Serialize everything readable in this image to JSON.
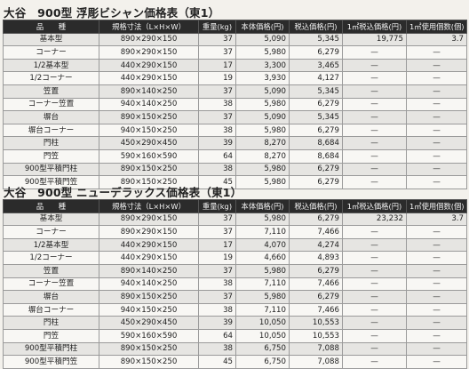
{
  "tables": [
    {
      "title": "大谷　900型 浮彫ビシャン価格表（東1）",
      "headers": [
        "品　　種",
        "規格寸法（L×H×W）",
        "重量(kg)",
        "本体価格(円)",
        "税込価格(円)",
        "1㎡税込価格(円)",
        "1㎡使用個数(個)"
      ],
      "rows": [
        [
          "基本型",
          "890×290×150",
          "37",
          "5,090",
          "5,345",
          "19,775",
          "3.7"
        ],
        [
          "コーナー",
          "890×290×150",
          "37",
          "5,980",
          "6,279",
          "—",
          "—"
        ],
        [
          "1/2基本型",
          "440×290×150",
          "17",
          "3,300",
          "3,465",
          "—",
          "—"
        ],
        [
          "1/2コーナー",
          "440×290×150",
          "19",
          "3,930",
          "4,127",
          "—",
          "—"
        ],
        [
          "笠置",
          "890×140×250",
          "37",
          "5,090",
          "5,345",
          "—",
          "—"
        ],
        [
          "コーナー笠置",
          "940×140×250",
          "38",
          "5,980",
          "6,279",
          "—",
          "—"
        ],
        [
          "塀台",
          "890×150×250",
          "37",
          "5,090",
          "5,345",
          "—",
          "—"
        ],
        [
          "塀台コーナー",
          "940×150×250",
          "38",
          "5,980",
          "6,279",
          "—",
          "—"
        ],
        [
          "門柱",
          "450×290×450",
          "39",
          "8,270",
          "8,684",
          "—",
          "—"
        ],
        [
          "門笠",
          "590×160×590",
          "64",
          "8,270",
          "8,684",
          "—",
          "—"
        ],
        [
          "900型平積門柱",
          "890×150×250",
          "38",
          "5,980",
          "6,279",
          "—",
          "—"
        ],
        [
          "900型平積門笠",
          "890×150×250",
          "45",
          "5,980",
          "6,279",
          "—",
          "—"
        ]
      ]
    },
    {
      "title": "大谷　900型 ニューデラックス価格表（東1）",
      "headers": [
        "品　　種",
        "規格寸法（L×H×W）",
        "重量(kg)",
        "本体価格(円)",
        "税込価格(円)",
        "1㎡税込価格(円)",
        "1㎡使用個数(個)"
      ],
      "rows": [
        [
          "基本型",
          "890×290×150",
          "37",
          "5,980",
          "6,279",
          "23,232",
          "3.7"
        ],
        [
          "コーナー",
          "890×290×150",
          "37",
          "7,110",
          "7,466",
          "—",
          "—"
        ],
        [
          "1/2基本型",
          "440×290×150",
          "17",
          "4,070",
          "4,274",
          "—",
          "—"
        ],
        [
          "1/2コーナー",
          "440×290×150",
          "19",
          "4,660",
          "4,893",
          "—",
          "—"
        ],
        [
          "笠置",
          "890×140×250",
          "37",
          "5,980",
          "6,279",
          "—",
          "—"
        ],
        [
          "コーナー笠置",
          "940×140×250",
          "38",
          "7,110",
          "7,466",
          "—",
          "—"
        ],
        [
          "塀台",
          "890×150×250",
          "37",
          "5,980",
          "6,279",
          "—",
          "—"
        ],
        [
          "塀台コーナー",
          "940×150×250",
          "38",
          "7,110",
          "7,466",
          "—",
          "—"
        ],
        [
          "門柱",
          "450×290×450",
          "39",
          "10,050",
          "10,553",
          "—",
          "—"
        ],
        [
          "門笠",
          "590×160×590",
          "64",
          "10,050",
          "10,553",
          "—",
          "—"
        ],
        [
          "900型平積門柱",
          "890×150×250",
          "38",
          "6,750",
          "7,088",
          "—",
          "—"
        ],
        [
          "900型平積門笠",
          "890×150×250",
          "45",
          "6,750",
          "7,088",
          "—",
          "—"
        ]
      ]
    }
  ]
}
